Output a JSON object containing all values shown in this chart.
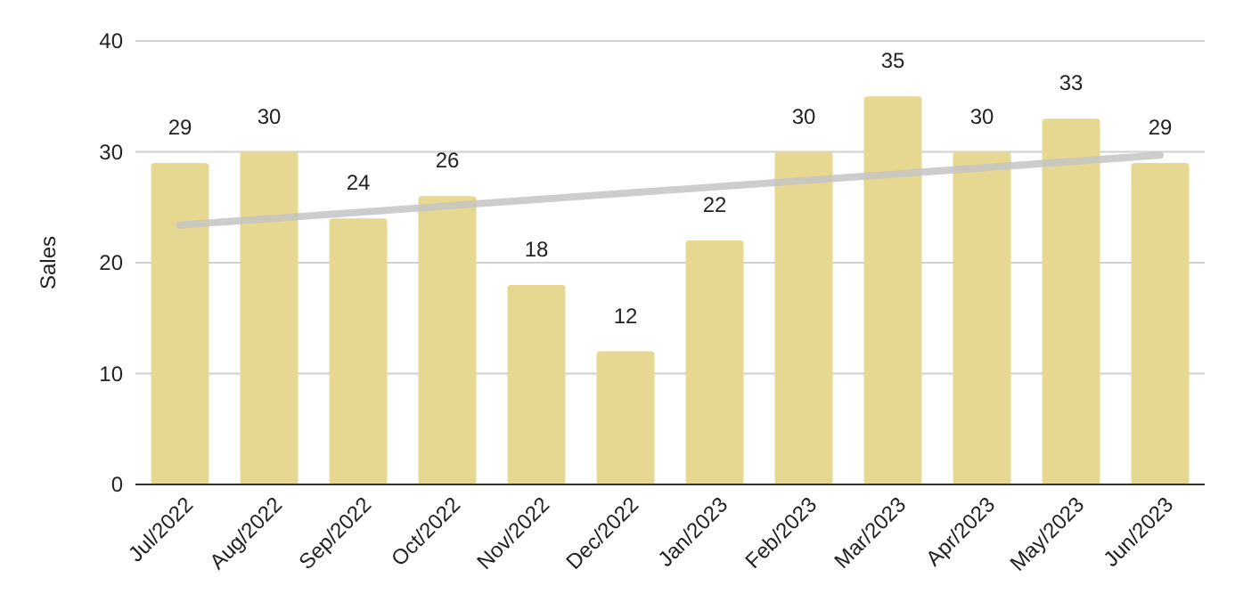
{
  "chart_data": {
    "type": "bar",
    "ylabel": "Sales",
    "categories": [
      "Jul/2022",
      "Aug/2022",
      "Sep/2022",
      "Oct/2022",
      "Nov/2022",
      "Dec/2022",
      "Jan/2023",
      "Feb/2023",
      "Mar/2023",
      "Apr/2023",
      "May/2023",
      "Jun/2023"
    ],
    "series": [
      {
        "color": "#e6d891",
        "values": [
          29,
          30,
          24,
          26,
          18,
          12,
          22,
          30,
          35,
          30,
          33,
          29
        ],
        "value_labels": [
          "29",
          "30",
          "24",
          "26",
          "18",
          "12",
          "22",
          "30",
          "35",
          "30",
          "33",
          "29"
        ]
      },
      {
        "type": "line",
        "color": "#c4c4c4",
        "x": [
          "Jul/2022",
          "Jun/2023"
        ],
        "values": [
          23.4,
          29.7
        ]
      }
    ],
    "ylim": [
      0,
      40
    ],
    "yticks": [
      0,
      10,
      20,
      30,
      40
    ],
    "grid": "y"
  }
}
